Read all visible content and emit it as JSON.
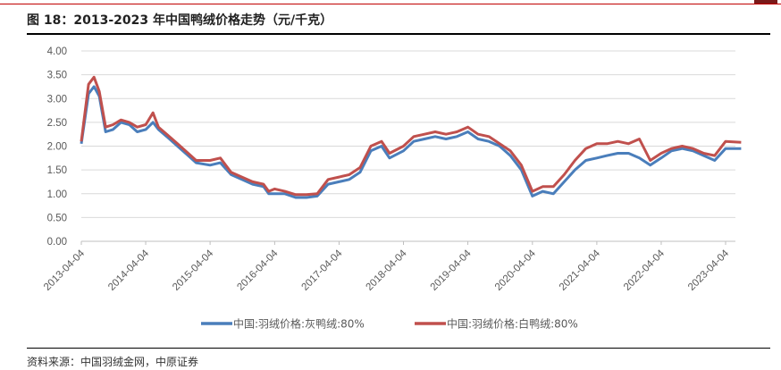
{
  "figure": {
    "title": "图 18：2013-2023 年中国鸭绒价格走势（元/千克）",
    "source": "资料来源：中国羽绒金网，中原证券"
  },
  "colors": {
    "series_gray": "#4a7ebb",
    "series_white": "#c0504d",
    "grid": "#d9d9d9",
    "axis": "#bfbfbf",
    "rule_red": "#c00000"
  },
  "chart_data": {
    "type": "line",
    "title": "",
    "xlabel": "",
    "ylabel": "",
    "ylim": [
      0,
      4
    ],
    "yticks": [
      "0.00",
      "0.50",
      "1.00",
      "1.50",
      "2.00",
      "2.50",
      "3.00",
      "3.50",
      "4.00"
    ],
    "xticks": [
      "2013-04-04",
      "2014-04-04",
      "2015-04-04",
      "2016-04-04",
      "2017-04-04",
      "2018-04-04",
      "2019-04-04",
      "2020-04-04",
      "2021-04-04",
      "2022-04-04",
      "2023-04-04"
    ],
    "grid": "horizontal",
    "legend": "bottom-center",
    "series": [
      {
        "name": "中国:羽绒价格:灰鸭绒:80%",
        "color": "#4a7ebb",
        "points": [
          [
            "2013-04-04",
            2.05
          ],
          [
            "2013-05-15",
            3.1
          ],
          [
            "2013-06-15",
            3.25
          ],
          [
            "2013-07-15",
            3.05
          ],
          [
            "2013-08-20",
            2.3
          ],
          [
            "2013-10-01",
            2.35
          ],
          [
            "2013-11-15",
            2.5
          ],
          [
            "2014-01-01",
            2.45
          ],
          [
            "2014-02-15",
            2.3
          ],
          [
            "2014-04-04",
            2.35
          ],
          [
            "2014-05-15",
            2.5
          ],
          [
            "2014-06-15",
            2.35
          ],
          [
            "2014-08-01",
            2.2
          ],
          [
            "2014-10-01",
            2.0
          ],
          [
            "2014-12-01",
            1.8
          ],
          [
            "2015-01-15",
            1.65
          ],
          [
            "2015-04-04",
            1.6
          ],
          [
            "2015-06-01",
            1.65
          ],
          [
            "2015-08-01",
            1.4
          ],
          [
            "2015-10-01",
            1.3
          ],
          [
            "2015-12-01",
            1.2
          ],
          [
            "2016-02-01",
            1.15
          ],
          [
            "2016-03-01",
            1.0
          ],
          [
            "2016-04-04",
            1.0
          ],
          [
            "2016-06-01",
            1.0
          ],
          [
            "2016-08-01",
            0.92
          ],
          [
            "2016-10-01",
            0.92
          ],
          [
            "2016-12-01",
            0.95
          ],
          [
            "2017-02-01",
            1.2
          ],
          [
            "2017-04-04",
            1.25
          ],
          [
            "2017-06-01",
            1.3
          ],
          [
            "2017-08-01",
            1.45
          ],
          [
            "2017-10-01",
            1.9
          ],
          [
            "2017-12-01",
            2.0
          ],
          [
            "2018-01-15",
            1.75
          ],
          [
            "2018-04-04",
            1.9
          ],
          [
            "2018-06-01",
            2.1
          ],
          [
            "2018-08-01",
            2.15
          ],
          [
            "2018-10-01",
            2.2
          ],
          [
            "2018-12-01",
            2.15
          ],
          [
            "2019-02-01",
            2.2
          ],
          [
            "2019-04-04",
            2.3
          ],
          [
            "2019-06-01",
            2.15
          ],
          [
            "2019-08-01",
            2.1
          ],
          [
            "2019-10-01",
            2.0
          ],
          [
            "2019-12-01",
            1.8
          ],
          [
            "2020-02-01",
            1.5
          ],
          [
            "2020-04-04",
            0.95
          ],
          [
            "2020-06-01",
            1.05
          ],
          [
            "2020-08-01",
            1.0
          ],
          [
            "2020-10-01",
            1.25
          ],
          [
            "2020-12-01",
            1.5
          ],
          [
            "2021-02-01",
            1.7
          ],
          [
            "2021-04-04",
            1.75
          ],
          [
            "2021-06-01",
            1.8
          ],
          [
            "2021-08-01",
            1.85
          ],
          [
            "2021-10-01",
            1.85
          ],
          [
            "2021-12-01",
            1.75
          ],
          [
            "2022-02-01",
            1.6
          ],
          [
            "2022-04-04",
            1.75
          ],
          [
            "2022-06-01",
            1.9
          ],
          [
            "2022-08-01",
            1.95
          ],
          [
            "2022-10-01",
            1.9
          ],
          [
            "2022-12-01",
            1.8
          ],
          [
            "2023-02-01",
            1.7
          ],
          [
            "2023-04-04",
            1.95
          ],
          [
            "2023-07-01",
            1.95
          ]
        ]
      },
      {
        "name": "中国:羽绒价格:白鸭绒:80%",
        "color": "#c0504d",
        "points": [
          [
            "2013-04-04",
            2.1
          ],
          [
            "2013-05-15",
            3.3
          ],
          [
            "2013-06-15",
            3.45
          ],
          [
            "2013-07-15",
            3.15
          ],
          [
            "2013-08-20",
            2.4
          ],
          [
            "2013-10-01",
            2.45
          ],
          [
            "2013-11-15",
            2.55
          ],
          [
            "2014-01-01",
            2.5
          ],
          [
            "2014-02-15",
            2.4
          ],
          [
            "2014-04-04",
            2.45
          ],
          [
            "2014-05-15",
            2.7
          ],
          [
            "2014-06-15",
            2.4
          ],
          [
            "2014-08-01",
            2.25
          ],
          [
            "2014-10-01",
            2.05
          ],
          [
            "2014-12-01",
            1.85
          ],
          [
            "2015-01-15",
            1.7
          ],
          [
            "2015-04-04",
            1.7
          ],
          [
            "2015-06-01",
            1.75
          ],
          [
            "2015-08-01",
            1.45
          ],
          [
            "2015-10-01",
            1.35
          ],
          [
            "2015-12-01",
            1.25
          ],
          [
            "2016-02-01",
            1.2
          ],
          [
            "2016-03-01",
            1.05
          ],
          [
            "2016-04-04",
            1.1
          ],
          [
            "2016-06-01",
            1.05
          ],
          [
            "2016-08-01",
            0.98
          ],
          [
            "2016-10-01",
            0.98
          ],
          [
            "2016-12-01",
            1.0
          ],
          [
            "2017-02-01",
            1.3
          ],
          [
            "2017-04-04",
            1.35
          ],
          [
            "2017-06-01",
            1.4
          ],
          [
            "2017-08-01",
            1.55
          ],
          [
            "2017-10-01",
            2.0
          ],
          [
            "2017-12-01",
            2.1
          ],
          [
            "2018-01-15",
            1.85
          ],
          [
            "2018-04-04",
            2.0
          ],
          [
            "2018-06-01",
            2.2
          ],
          [
            "2018-08-01",
            2.25
          ],
          [
            "2018-10-01",
            2.3
          ],
          [
            "2018-12-01",
            2.25
          ],
          [
            "2019-02-01",
            2.3
          ],
          [
            "2019-04-04",
            2.4
          ],
          [
            "2019-06-01",
            2.25
          ],
          [
            "2019-08-01",
            2.2
          ],
          [
            "2019-10-01",
            2.05
          ],
          [
            "2019-12-01",
            1.9
          ],
          [
            "2020-02-01",
            1.6
          ],
          [
            "2020-04-04",
            1.05
          ],
          [
            "2020-06-01",
            1.15
          ],
          [
            "2020-08-01",
            1.15
          ],
          [
            "2020-10-01",
            1.4
          ],
          [
            "2020-12-01",
            1.7
          ],
          [
            "2021-02-01",
            1.95
          ],
          [
            "2021-04-04",
            2.05
          ],
          [
            "2021-06-01",
            2.05
          ],
          [
            "2021-08-01",
            2.1
          ],
          [
            "2021-10-01",
            2.05
          ],
          [
            "2021-12-01",
            2.15
          ],
          [
            "2022-02-01",
            1.7
          ],
          [
            "2022-04-04",
            1.85
          ],
          [
            "2022-06-01",
            1.95
          ],
          [
            "2022-08-01",
            2.0
          ],
          [
            "2022-10-01",
            1.95
          ],
          [
            "2022-12-01",
            1.85
          ],
          [
            "2023-02-01",
            1.8
          ],
          [
            "2023-04-04",
            2.1
          ],
          [
            "2023-07-01",
            2.08
          ]
        ]
      }
    ]
  }
}
